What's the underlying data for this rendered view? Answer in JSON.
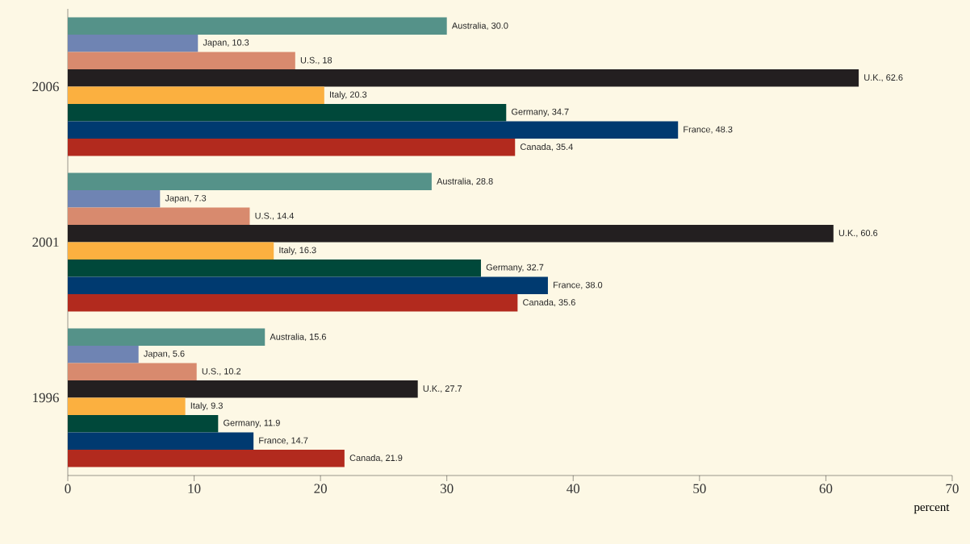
{
  "chart_data": {
    "type": "bar",
    "orientation": "horizontal",
    "categories": [
      "2006",
      "2001",
      "1996"
    ],
    "xlim": [
      0,
      70
    ],
    "xticks": [
      0,
      10,
      20,
      30,
      40,
      50,
      60,
      70
    ],
    "xlabel": "percent",
    "series": [
      {
        "color": "#559289",
        "values": [
          30.0,
          28.8,
          15.6
        ],
        "value_labels": [
          "Australia, 30.0",
          "Australia, 28.8",
          "Australia, 15.6"
        ]
      },
      {
        "color": "#6f84b3",
        "values": [
          10.3,
          7.3,
          5.6
        ],
        "value_labels": [
          "Japan, 10.3",
          "Japan, 7.3",
          "Japan, 5.6"
        ]
      },
      {
        "color": "#d88a6e",
        "values": [
          18,
          14.4,
          10.2
        ],
        "value_labels": [
          "U.S., 18",
          "U.S., 14.4",
          "U.S., 10.2"
        ]
      },
      {
        "color": "#231f20",
        "values": [
          62.6,
          60.6,
          27.7
        ],
        "value_labels": [
          "U.K., 62.6",
          "U.K., 60.6",
          "U.K., 27.7"
        ]
      },
      {
        "color": "#fbb040",
        "values": [
          20.3,
          16.3,
          9.3
        ],
        "value_labels": [
          "Italy, 20.3",
          "Italy, 16.3",
          "Italy, 9.3"
        ]
      },
      {
        "color": "#00483a",
        "values": [
          34.7,
          32.7,
          11.9
        ],
        "value_labels": [
          "Germany, 34.7",
          "Germany, 32.7",
          "Germany, 11.9"
        ]
      },
      {
        "color": "#003a70",
        "values": [
          48.3,
          38.0,
          14.7
        ],
        "value_labels": [
          "France, 48.3",
          "France, 38.0",
          "France, 14.7"
        ]
      },
      {
        "color": "#b22a1e",
        "values": [
          35.4,
          35.6,
          21.9
        ],
        "value_labels": [
          "Canada, 35.4",
          "Canada, 35.6",
          "Canada, 21.9"
        ]
      }
    ]
  }
}
